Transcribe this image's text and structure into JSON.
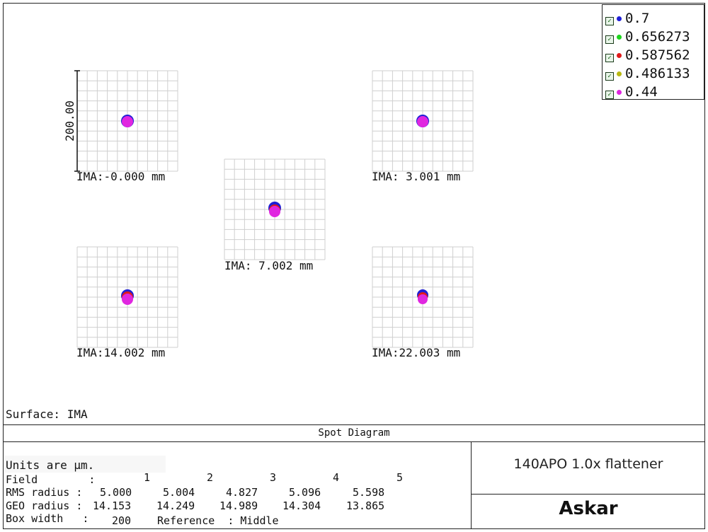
{
  "legend": {
    "items": [
      {
        "label": "0.7",
        "color": "#1f1fd6"
      },
      {
        "label": "0.656273",
        "color": "#1ed61e"
      },
      {
        "label": "0.587562",
        "color": "#e01b1b"
      },
      {
        "label": "0.486133",
        "color": "#b9b912"
      },
      {
        "label": "0.44",
        "color": "#e026e0"
      }
    ]
  },
  "scale_label": "200.00",
  "spots": [
    {
      "label": "IMA:-0.000 mm"
    },
    {
      "label": "IMA: 3.001 mm"
    },
    {
      "label": "IMA: 7.002 mm"
    },
    {
      "label": "IMA:14.002 mm"
    },
    {
      "label": "IMA:22.003 mm"
    }
  ],
  "surface_text": "Surface: IMA",
  "footer": {
    "title": "Spot Diagram",
    "units": "Units are µm.",
    "field_label": "Field        :",
    "field_values": [
      "1",
      "2",
      "3",
      "4",
      "5"
    ],
    "rms_label": "RMS radius :",
    "rms_values": [
      "5.000",
      "5.004",
      "4.827",
      "5.096",
      "5.598"
    ],
    "geo_label": "GEO radius :",
    "geo_values": [
      "14.153",
      "14.249",
      "14.989",
      "14.304",
      "13.865"
    ],
    "box_width_label": "Box width   :",
    "box_width_value": "200",
    "reference_text": "Reference  : Middle",
    "description": "140APO 1.0x flattener",
    "logo": "Askar"
  }
}
